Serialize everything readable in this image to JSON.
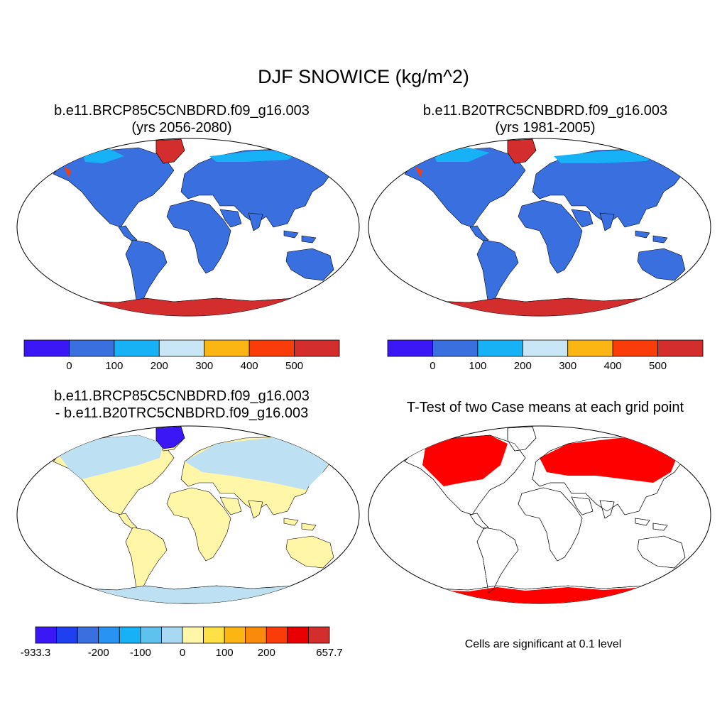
{
  "figure": {
    "title": "DJF SNOWICE (kg/m^2)",
    "colors": {
      "ocean": "#ffffff",
      "land_base": "#3a6fe0",
      "ice": "#d42d2d",
      "diff_land": "#fff6a8",
      "diff_snow": "#bde0f2",
      "sig": "#ff0000",
      "outline": "#000000"
    }
  },
  "panels": [
    {
      "id": "case",
      "title_line1": "b.e11.BRCP85C5CNBDRD.f09_g16.003",
      "title_line2": "(yrs 2056-2080)"
    },
    {
      "id": "control",
      "title_line1": "b.e11.B20TRC5CNBDRD.f09_g16.003",
      "title_line2": "(yrs 1981-2005)"
    },
    {
      "id": "difference",
      "title_line1": "b.e11.BRCP85C5CNBDRD.f09_g16.003",
      "title_line2": "- b.e11.B20TRC5CNBDRD.f09_g16.003"
    },
    {
      "id": "ttest",
      "title_line1": "T-Test of two Case means at each grid point",
      "note": "Cells are significant at 0.1 level"
    }
  ],
  "colorbars": {
    "main": {
      "colors": [
        "#3c17f5",
        "#3a6fe0",
        "#17b2f5",
        "#c9e6f7",
        "#fcb614",
        "#fa3c0a",
        "#d42d2d"
      ],
      "labels": [
        "0",
        "100",
        "200",
        "300",
        "400",
        "500"
      ]
    },
    "diff": {
      "colors": [
        "#3c17f5",
        "#1f3ff0",
        "#3a6fe0",
        "#2893f2",
        "#17b2f5",
        "#5fc1ee",
        "#a8d8f2",
        "#fff6a8",
        "#ffe045",
        "#fcb614",
        "#fa8a0a",
        "#fa3c0a",
        "#e80000",
        "#d42d2d"
      ],
      "labels": [
        "-933.3",
        "-200",
        "-100",
        "0",
        "100",
        "200",
        "657.7"
      ]
    }
  }
}
